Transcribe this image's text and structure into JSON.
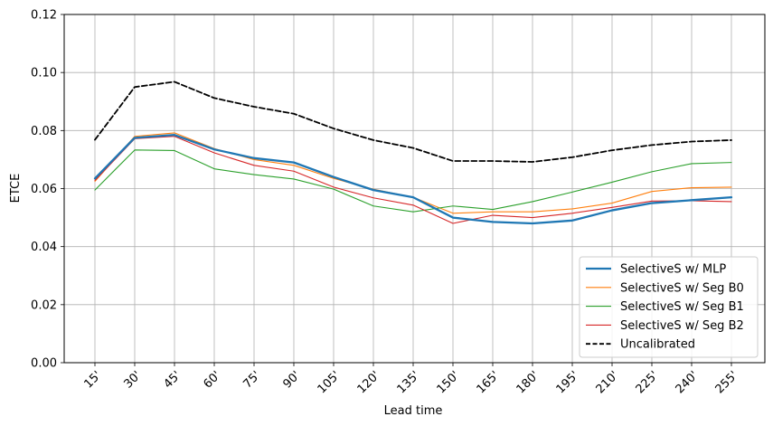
{
  "chart_data": {
    "type": "line",
    "title": "",
    "xlabel": "Lead time",
    "ylabel": "ETCE",
    "categories": [
      "15'",
      "30'",
      "45'",
      "60'",
      "75'",
      "90'",
      "105'",
      "120'",
      "135'",
      "150'",
      "165'",
      "180'",
      "195'",
      "210'",
      "225'",
      "240'",
      "255'"
    ],
    "ylim": [
      0,
      0.12
    ],
    "yticks": [
      "0.00",
      "0.02",
      "0.04",
      "0.06",
      "0.08",
      "0.10",
      "0.12"
    ],
    "grid": true,
    "legend_position": "lower-right",
    "series": [
      {
        "name": "SelectiveS w/ MLP",
        "color": "#1f77b4",
        "style": "solid-thick",
        "values": [
          0.0635,
          0.0775,
          0.0785,
          0.0735,
          0.0705,
          0.069,
          0.064,
          0.0595,
          0.057,
          0.05,
          0.0485,
          0.048,
          0.049,
          0.0525,
          0.055,
          0.056,
          0.057
        ]
      },
      {
        "name": "SelectiveS w/ Seg B0",
        "color": "#ff7f0e",
        "style": "solid",
        "values": [
          0.0625,
          0.078,
          0.0792,
          0.0738,
          0.07,
          0.068,
          0.0635,
          0.0598,
          0.057,
          0.0515,
          0.052,
          0.052,
          0.053,
          0.055,
          0.059,
          0.0603,
          0.0605
        ]
      },
      {
        "name": "SelectiveS w/ Seg B1",
        "color": "#2ca02c",
        "style": "solid",
        "values": [
          0.0595,
          0.0733,
          0.0731,
          0.0668,
          0.0648,
          0.0633,
          0.0598,
          0.054,
          0.052,
          0.054,
          0.0528,
          0.0555,
          0.0588,
          0.0622,
          0.0658,
          0.0686,
          0.069
        ]
      },
      {
        "name": "SelectiveS w/ Seg B2",
        "color": "#d62728",
        "style": "solid",
        "values": [
          0.0628,
          0.0772,
          0.078,
          0.0723,
          0.068,
          0.066,
          0.0605,
          0.0568,
          0.0543,
          0.048,
          0.0508,
          0.05,
          0.0515,
          0.0535,
          0.0557,
          0.0558,
          0.0555
        ]
      },
      {
        "name": "Uncalibrated",
        "color": "#000000",
        "style": "dashed",
        "values": [
          0.0768,
          0.095,
          0.0968,
          0.0912,
          0.0882,
          0.0858,
          0.0807,
          0.0767,
          0.074,
          0.0695,
          0.0695,
          0.0692,
          0.0708,
          0.0732,
          0.075,
          0.0762,
          0.0767
        ]
      }
    ]
  }
}
